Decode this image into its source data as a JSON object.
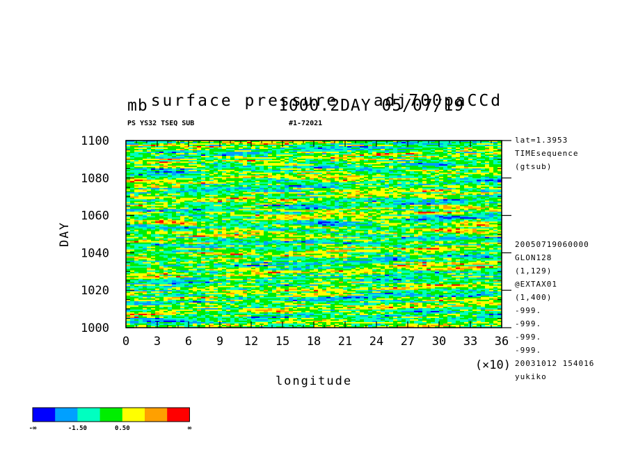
{
  "header": {
    "title_left": "surface pressure",
    "title_right": "adj700paCCd",
    "units": "mb",
    "level_date": "1000.2DAY 05/07/19",
    "sub_left": "PS YS32 TSEQ SUB",
    "sub_right": "#1-72021"
  },
  "info_top": [
    "lat=1.3953",
    "TIMEsequence",
    "(gtsub)"
  ],
  "info_bottom": [
    "20050719060000",
    "GLON128",
    "(1,129)",
    "@EXTAX01",
    "(1,400)",
    "-999.",
    "-999.",
    "-999.",
    "-999.",
    "20031012 154016",
    "yukiko"
  ],
  "chart_data": {
    "type": "heatmap",
    "xlabel": "longitude",
    "ylabel": "DAY",
    "x_multiplier": "(×10)",
    "xlim": [
      0,
      36
    ],
    "ylim": [
      1000,
      1100
    ],
    "x_ticks": [
      "0",
      "3",
      "6",
      "9",
      "12",
      "15",
      "18",
      "21",
      "24",
      "27",
      "30",
      "33",
      "36"
    ],
    "y_ticks": [
      "1000",
      "1020",
      "1040",
      "1060",
      "1080",
      "1100"
    ],
    "colorbar": {
      "colors": [
        "#0000ff",
        "#00a0ff",
        "#00ffc0",
        "#00ee00",
        "#ffff00",
        "#ffa000",
        "#ff0000"
      ],
      "labels": [
        "-∞",
        "-1.50",
        "0.50",
        "∞"
      ]
    }
  }
}
